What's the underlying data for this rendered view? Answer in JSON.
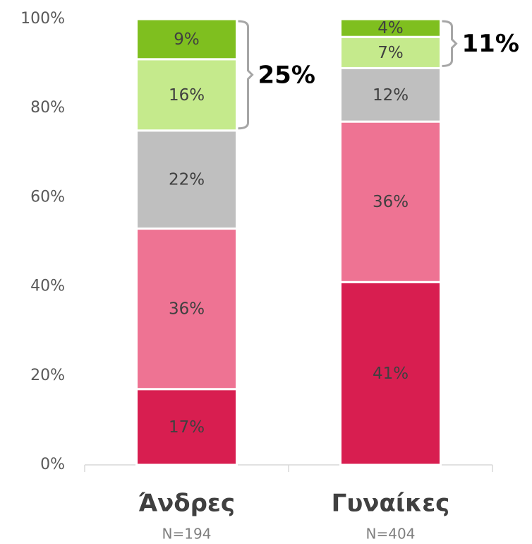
{
  "chart_data": {
    "type": "stacked_bar",
    "categories": [
      "Άνδρες",
      "Γυναίκες"
    ],
    "sample_sizes": [
      "N=194",
      "N=404"
    ],
    "series": [
      {
        "color": "#d81e50",
        "values": [
          17,
          41
        ],
        "value_labels": [
          "17%",
          "41%"
        ]
      },
      {
        "color": "#ee7393",
        "values": [
          36,
          36
        ],
        "value_labels": [
          "36%",
          "36%"
        ]
      },
      {
        "color": "#bfbfbf",
        "values": [
          22,
          12
        ],
        "value_labels": [
          "22%",
          "12%"
        ]
      },
      {
        "color": "#c5ea8c",
        "values": [
          16,
          7
        ],
        "value_labels": [
          "16%",
          "7%"
        ]
      },
      {
        "color": "#7fbf1f",
        "values": [
          9,
          4
        ],
        "value_labels": [
          "9%",
          "4%"
        ]
      }
    ],
    "annotations": [
      {
        "text": "25%",
        "category": 0,
        "series": [
          3,
          4
        ]
      },
      {
        "text": "11%",
        "category": 1,
        "series": [
          3,
          4
        ]
      }
    ],
    "ylim": [
      0,
      100
    ],
    "yticks": [
      {
        "value": 0,
        "label": "0%"
      },
      {
        "value": 20,
        "label": "20%"
      },
      {
        "value": 40,
        "label": "40%"
      },
      {
        "value": 60,
        "label": "60%"
      },
      {
        "value": 80,
        "label": "80%"
      },
      {
        "value": 100,
        "label": "100%"
      }
    ],
    "grid": false
  }
}
